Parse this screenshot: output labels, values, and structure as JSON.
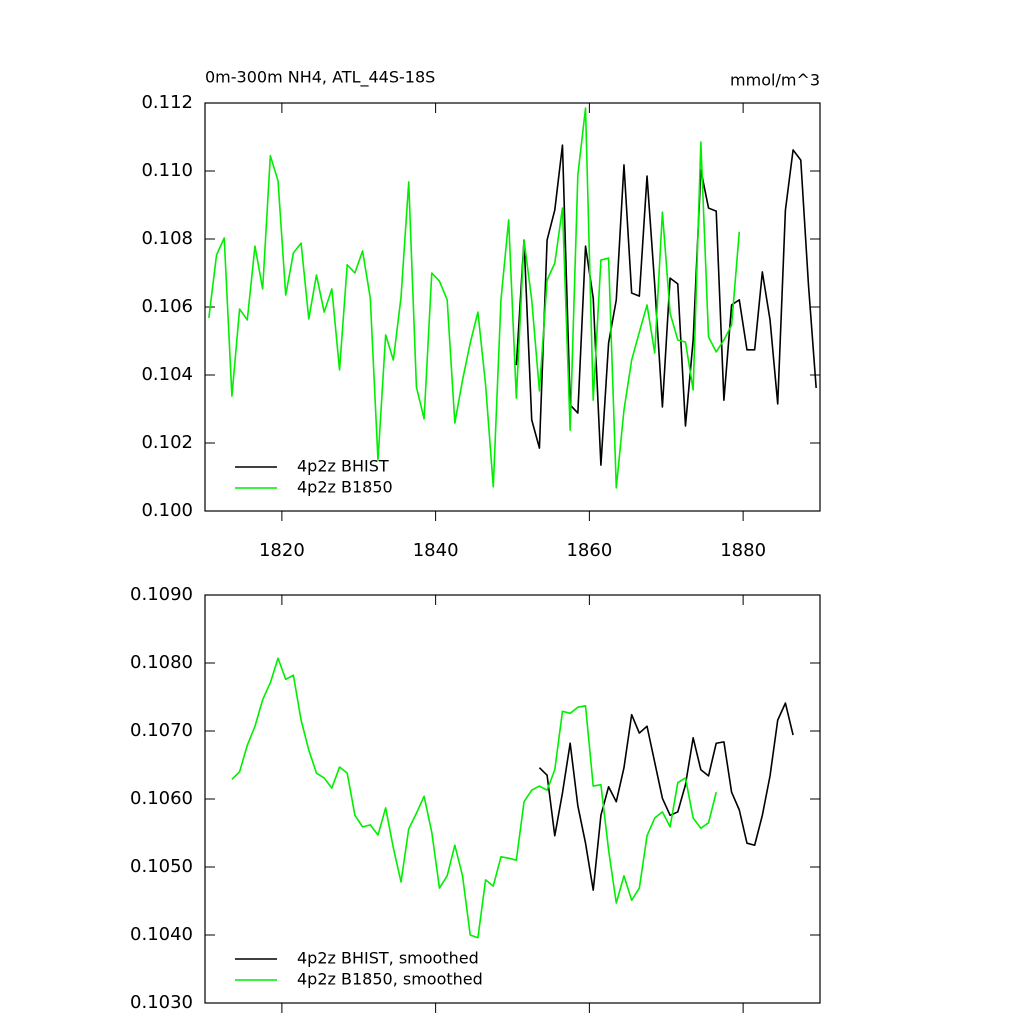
{
  "chart_data": [
    {
      "type": "line",
      "title": "0m-300m NH4, ATL_44S-18S",
      "units": "mmol/m^3",
      "xlim": [
        1810,
        1890
      ],
      "ylim": [
        0.1,
        0.112
      ],
      "xticks": [
        1820,
        1840,
        1860,
        1880
      ],
      "show_xtick_labels": true,
      "yticks": [
        {
          "value": 0.1,
          "label": "0.100"
        },
        {
          "value": 0.102,
          "label": "0.102"
        },
        {
          "value": 0.104,
          "label": "0.104"
        },
        {
          "value": 0.106,
          "label": "0.106"
        },
        {
          "value": 0.108,
          "label": "0.108"
        },
        {
          "value": 0.11,
          "label": "0.110"
        },
        {
          "value": 0.112,
          "label": "0.112"
        }
      ],
      "legend": "lower left",
      "series": [
        {
          "name": "4p2z BHIST",
          "color": "#000000",
          "x": [
            1850.5,
            1851.5,
            1852.5,
            1853.5,
            1854.5,
            1855.5,
            1856.5,
            1857.5,
            1858.5,
            1859.5,
            1860.5,
            1861.5,
            1862.5,
            1863.5,
            1864.5,
            1865.5,
            1866.5,
            1867.5,
            1868.5,
            1869.5,
            1870.5,
            1871.5,
            1872.5,
            1873.5,
            1874.5,
            1875.5,
            1876.5,
            1877.5,
            1878.5,
            1879.5,
            1880.5,
            1881.5,
            1882.5,
            1883.5,
            1884.5,
            1885.5,
            1886.5,
            1887.5,
            1888.5,
            1889.5
          ],
          "values": [
            0.10429,
            0.10797,
            0.10268,
            0.10185,
            0.10797,
            0.10885,
            0.11076,
            0.10312,
            0.10288,
            0.10779,
            0.10626,
            0.10135,
            0.10494,
            0.10621,
            0.11018,
            0.10641,
            0.10632,
            0.10985,
            0.10665,
            0.10306,
            0.10685,
            0.10668,
            0.1025,
            0.10503,
            0.11003,
            0.10891,
            0.10882,
            0.10326,
            0.10606,
            0.10621,
            0.10474,
            0.10474,
            0.10703,
            0.10562,
            0.10315,
            0.10885,
            0.11062,
            0.11032,
            0.10665,
            0.10362
          ]
        },
        {
          "name": "4p2z B1850",
          "color": "#00ee00",
          "x": [
            1810.5,
            1811.5,
            1812.5,
            1813.5,
            1814.5,
            1815.5,
            1816.5,
            1817.5,
            1818.5,
            1819.5,
            1820.5,
            1821.5,
            1822.5,
            1823.5,
            1824.5,
            1825.5,
            1826.5,
            1827.5,
            1828.5,
            1829.5,
            1830.5,
            1831.5,
            1832.5,
            1833.5,
            1834.5,
            1835.5,
            1836.5,
            1837.5,
            1838.5,
            1839.5,
            1840.5,
            1841.5,
            1842.5,
            1843.5,
            1844.5,
            1845.5,
            1846.5,
            1847.5,
            1848.5,
            1849.5,
            1850.5,
            1851.5,
            1852.5,
            1853.5,
            1854.5,
            1855.5,
            1856.5,
            1857.5,
            1858.5,
            1859.5,
            1860.5,
            1861.5,
            1862.5,
            1863.5,
            1864.5,
            1865.5,
            1866.5,
            1867.5,
            1868.5,
            1869.5,
            1870.5,
            1871.5,
            1872.5,
            1873.5,
            1874.5,
            1875.5,
            1876.5,
            1877.5,
            1878.5,
            1879.5
          ],
          "values": [
            0.10568,
            0.10753,
            0.10803,
            0.10338,
            0.10594,
            0.10562,
            0.10779,
            0.10653,
            0.11045,
            0.10971,
            0.10635,
            0.10759,
            0.10788,
            0.10565,
            0.10694,
            0.10585,
            0.10653,
            0.10415,
            0.10724,
            0.107,
            0.10765,
            0.10626,
            0.1015,
            0.10518,
            0.10444,
            0.10629,
            0.10968,
            0.10365,
            0.10271,
            0.107,
            0.10676,
            0.10621,
            0.10259,
            0.10385,
            0.10494,
            0.10585,
            0.10371,
            0.10071,
            0.10621,
            0.10856,
            0.10332,
            0.10797,
            0.10621,
            0.10353,
            0.10679,
            0.10729,
            0.10891,
            0.10238,
            0.10988,
            0.11185,
            0.10326,
            0.10738,
            0.10744,
            0.10068,
            0.10297,
            0.10444,
            0.10526,
            0.10606,
            0.10465,
            0.10879,
            0.10582,
            0.10503,
            0.10497,
            0.10356,
            0.11085,
            0.10512,
            0.10468,
            0.10503,
            0.10547,
            0.10821
          ]
        }
      ]
    },
    {
      "type": "line",
      "xlim": [
        1810,
        1890
      ],
      "ylim": [
        0.103,
        0.109
      ],
      "xticks": [
        1820,
        1840,
        1860,
        1880
      ],
      "show_xtick_labels": false,
      "yticks": [
        {
          "value": 0.103,
          "label": "0.1030"
        },
        {
          "value": 0.104,
          "label": "0.1040"
        },
        {
          "value": 0.105,
          "label": "0.1050"
        },
        {
          "value": 0.106,
          "label": "0.1060"
        },
        {
          "value": 0.107,
          "label": "0.1070"
        },
        {
          "value": 0.108,
          "label": "0.1080"
        },
        {
          "value": 0.109,
          "label": "0.1090"
        }
      ],
      "legend": "lower left",
      "series": [
        {
          "name": "4p2z BHIST, smoothed",
          "color": "#000000",
          "x": [
            1853.5,
            1854.5,
            1855.5,
            1856.5,
            1857.5,
            1858.5,
            1859.5,
            1860.5,
            1861.5,
            1862.5,
            1863.5,
            1864.5,
            1865.5,
            1866.5,
            1867.5,
            1868.5,
            1869.5,
            1870.5,
            1871.5,
            1872.5,
            1873.5,
            1874.5,
            1875.5,
            1876.5,
            1877.5,
            1878.5,
            1879.5,
            1880.5,
            1881.5,
            1882.5,
            1883.5,
            1884.5,
            1885.5,
            1886.5
          ],
          "values": [
            0.10646,
            0.10635,
            0.10546,
            0.10609,
            0.10682,
            0.1059,
            0.10535,
            0.10466,
            0.10576,
            0.10618,
            0.10596,
            0.10646,
            0.10724,
            0.10697,
            0.10707,
            0.10654,
            0.10601,
            0.10576,
            0.10581,
            0.10621,
            0.1069,
            0.10643,
            0.10634,
            0.10682,
            0.10684,
            0.1061,
            0.10584,
            0.10535,
            0.10532,
            0.10576,
            0.10634,
            0.10716,
            0.10741,
            0.10694
          ]
        },
        {
          "name": "4p2z B1850, smoothed",
          "color": "#00ee00",
          "x": [
            1813.5,
            1814.5,
            1815.5,
            1816.5,
            1817.5,
            1818.5,
            1819.5,
            1820.5,
            1821.5,
            1822.5,
            1823.5,
            1824.5,
            1825.5,
            1826.5,
            1827.5,
            1828.5,
            1829.5,
            1830.5,
            1831.5,
            1832.5,
            1833.5,
            1834.5,
            1835.5,
            1836.5,
            1837.5,
            1838.5,
            1839.5,
            1840.5,
            1841.5,
            1842.5,
            1843.5,
            1844.5,
            1845.5,
            1846.5,
            1847.5,
            1848.5,
            1849.5,
            1850.5,
            1851.5,
            1852.5,
            1853.5,
            1854.5,
            1855.5,
            1856.5,
            1857.5,
            1858.5,
            1859.5,
            1860.5,
            1861.5,
            1862.5,
            1863.5,
            1864.5,
            1865.5,
            1866.5,
            1867.5,
            1868.5,
            1869.5,
            1870.5,
            1871.5,
            1872.5,
            1873.5,
            1874.5,
            1875.5,
            1876.5
          ],
          "values": [
            0.10629,
            0.1064,
            0.10679,
            0.10707,
            0.10746,
            0.10771,
            0.10807,
            0.10776,
            0.10782,
            0.10716,
            0.10672,
            0.10638,
            0.10631,
            0.10616,
            0.10647,
            0.10638,
            0.10576,
            0.10559,
            0.10562,
            0.10547,
            0.10587,
            0.10528,
            0.10478,
            0.10556,
            0.10579,
            0.10604,
            0.10551,
            0.10469,
            0.10487,
            0.10532,
            0.10487,
            0.104,
            0.10396,
            0.10481,
            0.10472,
            0.10515,
            0.10513,
            0.1051,
            0.10596,
            0.10613,
            0.10619,
            0.10613,
            0.10643,
            0.10729,
            0.10726,
            0.10735,
            0.10737,
            0.10619,
            0.10621,
            0.10525,
            0.10447,
            0.10487,
            0.10451,
            0.10469,
            0.10546,
            0.10572,
            0.10581,
            0.10559,
            0.10624,
            0.10631,
            0.10572,
            0.10557,
            0.10565,
            0.1061
          ]
        }
      ]
    }
  ]
}
